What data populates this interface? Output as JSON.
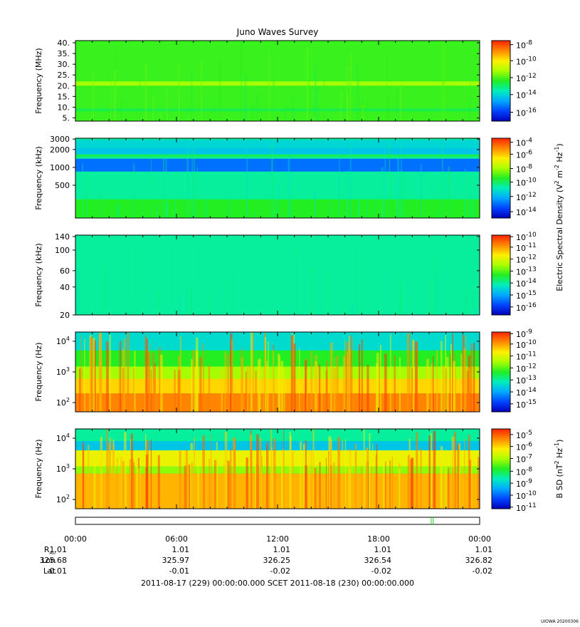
{
  "chart_data": {
    "type": "heatmap",
    "title": "Juno Waves Survey",
    "colormap": [
      "#0000bb",
      "#0044ff",
      "#00aaff",
      "#00eebb",
      "#22ee22",
      "#aaff00",
      "#ffee00",
      "#ff8800",
      "#ff2200"
    ],
    "panels": [
      {
        "ylabel": "Frequency (MHz)",
        "scale": "linear",
        "ylim": [
          3.5,
          41
        ],
        "yticks": [
          {
            "v": 5,
            "label": "5."
          },
          {
            "v": 10,
            "label": "10."
          },
          {
            "v": 15,
            "label": "15."
          },
          {
            "v": 20,
            "label": "20."
          },
          {
            "v": 25,
            "label": "25."
          },
          {
            "v": 30,
            "label": "30."
          },
          {
            "v": 35,
            "label": "35."
          },
          {
            "v": 40,
            "label": "40."
          }
        ],
        "background_level": 0.52,
        "bands": [
          {
            "from": 20,
            "to": 22,
            "level": 0.62
          },
          {
            "from": 8,
            "to": 9.5,
            "level": 0.47
          }
        ],
        "colorbar": {
          "ticks": [
            {
              "base": "10",
              "exp": "-8",
              "level": 0.95
            },
            {
              "base": "10",
              "exp": "-10",
              "level": 0.75
            },
            {
              "base": "10",
              "exp": "-12",
              "level": 0.54
            },
            {
              "base": "10",
              "exp": "-14",
              "level": 0.33
            },
            {
              "base": "10",
              "exp": "-16",
              "level": 0.11
            }
          ]
        }
      },
      {
        "ylabel": "Frequency (kHz)",
        "scale": "log",
        "ylim": [
          140,
          3100
        ],
        "yticks": [
          {
            "v": 500,
            "label": "500"
          },
          {
            "v": 1000,
            "label": "1000"
          },
          {
            "v": 2000,
            "label": "2000"
          },
          {
            "v": 3000,
            "label": "3000"
          }
        ],
        "background_level": 0.4,
        "bands": [
          {
            "from": 2100,
            "to": 2900,
            "level": 0.33
          },
          {
            "from": 1650,
            "to": 2100,
            "level": 0.3
          },
          {
            "from": 1500,
            "to": 1650,
            "level": 0.46
          },
          {
            "from": 850,
            "to": 1400,
            "level": 0.18
          },
          {
            "from": 140,
            "to": 290,
            "level": 0.5
          }
        ],
        "colorbar": {
          "ticks": [
            {
              "base": "10",
              "exp": "-4",
              "level": 0.95
            },
            {
              "base": "10",
              "exp": "-6",
              "level": 0.8
            },
            {
              "base": "10",
              "exp": "-8",
              "level": 0.62
            },
            {
              "base": "10",
              "exp": "-10",
              "level": 0.45
            },
            {
              "base": "10",
              "exp": "-12",
              "level": 0.27
            },
            {
              "base": "10",
              "exp": "-14",
              "level": 0.08
            }
          ]
        }
      },
      {
        "ylabel": "Frequency (kHz)",
        "scale": "log",
        "ylim": [
          20,
          145
        ],
        "yticks": [
          {
            "v": 20,
            "label": "20"
          },
          {
            "v": 40,
            "label": "40"
          },
          {
            "v": 60,
            "label": "60"
          },
          {
            "v": 100,
            "label": "100"
          },
          {
            "v": 140,
            "label": "140"
          }
        ],
        "background_level": 0.4,
        "bands": [],
        "colorbar": {
          "ticks": [
            {
              "base": "10",
              "exp": "-10",
              "level": 0.98
            },
            {
              "base": "10",
              "exp": "-11",
              "level": 0.85
            },
            {
              "base": "10",
              "exp": "-12",
              "level": 0.7
            },
            {
              "base": "10",
              "exp": "-13",
              "level": 0.55
            },
            {
              "base": "10",
              "exp": "-14",
              "level": 0.4
            },
            {
              "base": "10",
              "exp": "-15",
              "level": 0.25
            },
            {
              "base": "10",
              "exp": "-16",
              "level": 0.1
            }
          ]
        }
      },
      {
        "ylabel": "Frequency (Hz)",
        "scale": "log",
        "ylim": [
          50,
          20000
        ],
        "yticks": [
          {
            "v": 100,
            "base": "10",
            "exp": "2"
          },
          {
            "v": 1000,
            "base": "10",
            "exp": "3"
          },
          {
            "v": 10000,
            "base": "10",
            "exp": "4"
          }
        ],
        "background_level": 0.36,
        "bands": [
          {
            "from": 5000,
            "to": 20000,
            "level": 0.34
          },
          {
            "from": 1500,
            "to": 5000,
            "level": 0.5
          },
          {
            "from": 600,
            "to": 1500,
            "level": 0.62
          },
          {
            "from": 200,
            "to": 600,
            "level": 0.78
          },
          {
            "from": 50,
            "to": 200,
            "level": 0.88
          }
        ],
        "colorbar": {
          "ticks": [
            {
              "base": "10",
              "exp": "-9",
              "level": 0.98
            },
            {
              "base": "10",
              "exp": "-10",
              "level": 0.85
            },
            {
              "base": "10",
              "exp": "-11",
              "level": 0.7
            },
            {
              "base": "10",
              "exp": "-12",
              "level": 0.55
            },
            {
              "base": "10",
              "exp": "-13",
              "level": 0.4
            },
            {
              "base": "10",
              "exp": "-14",
              "level": 0.25
            },
            {
              "base": "10",
              "exp": "-15",
              "level": 0.1
            }
          ]
        }
      },
      {
        "ylabel": "Frequency (Hz)",
        "scale": "log",
        "ylim": [
          50,
          20000
        ],
        "yticks": [
          {
            "v": 100,
            "base": "10",
            "exp": "2"
          },
          {
            "v": 1000,
            "base": "10",
            "exp": "3"
          },
          {
            "v": 10000,
            "base": "10",
            "exp": "4"
          }
        ],
        "background_level": 0.35,
        "bands": [
          {
            "from": 8000,
            "to": 20000,
            "level": 0.4
          },
          {
            "from": 4000,
            "to": 8000,
            "level": 0.3
          },
          {
            "from": 1200,
            "to": 4000,
            "level": 0.72
          },
          {
            "from": 700,
            "to": 1200,
            "level": 0.6
          },
          {
            "from": 50,
            "to": 700,
            "level": 0.82
          }
        ],
        "colorbar": {
          "ticks": [
            {
              "base": "10",
              "exp": "-5",
              "level": 0.93
            },
            {
              "base": "10",
              "exp": "-6",
              "level": 0.78
            },
            {
              "base": "10",
              "exp": "-7",
              "level": 0.63
            },
            {
              "base": "10",
              "exp": "-8",
              "level": 0.47
            },
            {
              "base": "10",
              "exp": "-9",
              "level": 0.32
            },
            {
              "base": "10",
              "exp": "-10",
              "level": 0.17
            },
            {
              "base": "10",
              "exp": "-11",
              "level": 0.02
            }
          ]
        }
      }
    ],
    "colorbar_labels": [
      {
        "text": "Electric Spectral Density (V",
        "sup1": "2",
        "mid": " m",
        "sup2": "-2",
        "tail": " Hz",
        "sup3": "-1",
        "end": ")"
      },
      {
        "text": "B SD (nT",
        "sup1": "2",
        "mid": " Hz",
        "sup2": "-1",
        "tail": ")"
      }
    ],
    "x_axis": {
      "ticks": [
        "00:00",
        "06:00",
        "12:00",
        "18:00",
        "00:00"
      ],
      "ephemeris": [
        {
          "label": "R",
          "sub": "AU",
          "values": [
            "1.01",
            "1.01",
            "1.01",
            "1.01",
            "1.01"
          ]
        },
        {
          "label": "Lon",
          "values": [
            "325.68",
            "325.97",
            "326.25",
            "326.54",
            "326.82"
          ]
        },
        {
          "label": "Lat",
          "values": [
            "-0.01",
            "-0.01",
            "-0.02",
            "-0.02",
            "-0.02"
          ]
        }
      ],
      "time_range": "2011-08-17 (229) 00:00:00.000     SCET     2011-08-18 (230) 00:00:00.000"
    },
    "corner_note": "UIOWA 20200306"
  }
}
